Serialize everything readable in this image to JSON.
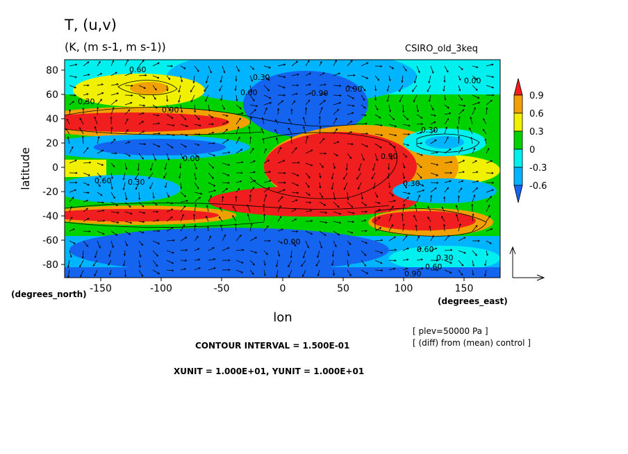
{
  "header": {
    "title": "T, (u,v)",
    "units": "(K, (m s-1, m s-1))",
    "model": "CSIRO_old_3keq"
  },
  "axes": {
    "ylabel": "latitude",
    "xlabel": "lon",
    "y_units": "(degrees_north)",
    "x_units": "(degrees_east)"
  },
  "footer": {
    "contour_interval": "CONTOUR INTERVAL = 1.500E-01",
    "vector_units": "XUNIT = 1.000E+01, YUNIT = 1.000E+01",
    "plev": "[ plev=50000 Pa ]",
    "diff_note": "[ (diff) from (mean) control ]"
  },
  "colors": {
    "below_-0.6": "#1464f0",
    "-0.6_to_-0.3": "#00b4ff",
    "-0.3_to_0": "#00f0f0",
    "0_to_0.3": "#00d200",
    "0.3_to_0.6": "#f0f000",
    "0.6_to_0.9": "#f0a000",
    "above_0.9": "#f01e1e"
  },
  "chart_data": {
    "type": "heatmap",
    "title": "T, (u,v)",
    "xlabel": "lon",
    "ylabel": "latitude",
    "xlim": [
      -180,
      180
    ],
    "ylim": [
      -90,
      90
    ],
    "xticks": [
      -150,
      -100,
      -50,
      0,
      50,
      100,
      150
    ],
    "yticks": [
      80,
      60,
      40,
      20,
      0,
      -20,
      -40,
      -60,
      -80
    ],
    "colorbar": {
      "levels": [
        -0.6,
        -0.3,
        0,
        0.3,
        0.6,
        0.9
      ],
      "labels": [
        "0.9",
        "0.6",
        "0.3",
        "0",
        "-0.3",
        "-0.6"
      ]
    },
    "contour_labels": [
      "0.60",
      "0.30",
      "0.90",
      "0.00"
    ],
    "grid": false,
    "overlay": "wind vectors"
  }
}
